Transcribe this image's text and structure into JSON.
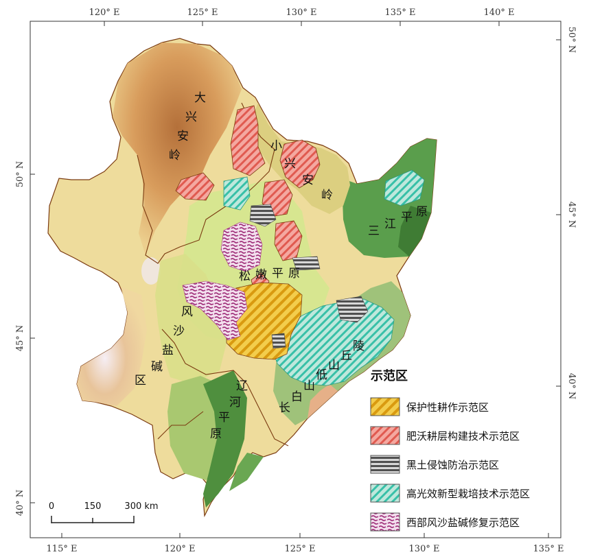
{
  "top_lon_labels": [
    "120° E",
    "125° E",
    "130° E",
    "135° E",
    "140° E"
  ],
  "bottom_lon_labels": [
    "115° E",
    "120° E",
    "125° E",
    "130° E",
    "135° E"
  ],
  "left_lat_labels": [
    "50° N",
    "45° N",
    "40° N"
  ],
  "right_lat_labels": [
    "50° N",
    "45° N",
    "40° N"
  ],
  "regions": {
    "da_xing_an_ling": [
      "大",
      "兴",
      "安",
      "岭"
    ],
    "xiao_xing_an_ling": [
      "小",
      "兴",
      "安",
      "岭"
    ],
    "san_jiang_ping_yuan": [
      "三",
      "江",
      "平",
      "原"
    ],
    "song_nen_ping_yuan": [
      "松",
      "嫩",
      "平",
      "原"
    ],
    "feng_sha_yan_jian_qu": [
      "风",
      "沙",
      "盐",
      "碱",
      "区"
    ],
    "liao_he_ping_yuan": [
      "辽",
      "河",
      "平",
      "原"
    ],
    "chang_bai_shan": [
      "长",
      "白",
      "山",
      "低",
      "山",
      "丘",
      "陵"
    ]
  },
  "legend": {
    "title": "示范区",
    "items": [
      {
        "label": "保护性耕作示范区",
        "pattern": "conservation",
        "color": "#e8b820"
      },
      {
        "label": "肥沃耕层构建技术示范区",
        "pattern": "fertile",
        "color": "#e05a50"
      },
      {
        "label": "黑土侵蚀防治示范区",
        "pattern": "erosion",
        "color": "#555555"
      },
      {
        "label": "高光效新型栽培技术示范区",
        "pattern": "highlight",
        "color": "#38c0a8"
      },
      {
        "label": "西部风沙盐碱修复示范区",
        "pattern": "western",
        "color": "#a0307a"
      }
    ]
  },
  "scale_bar": {
    "labels": [
      "0",
      "150",
      "300 km"
    ]
  },
  "colors": {
    "lowland_green": "#5a9a48",
    "plain_light": "#cfe08a",
    "plain_yellow": "#f2e3a0",
    "upland_orange": "#e0b070",
    "mountain_brown": "#c08050",
    "peak_white": "#f0e8ee",
    "boundary": "#7a3a10"
  }
}
